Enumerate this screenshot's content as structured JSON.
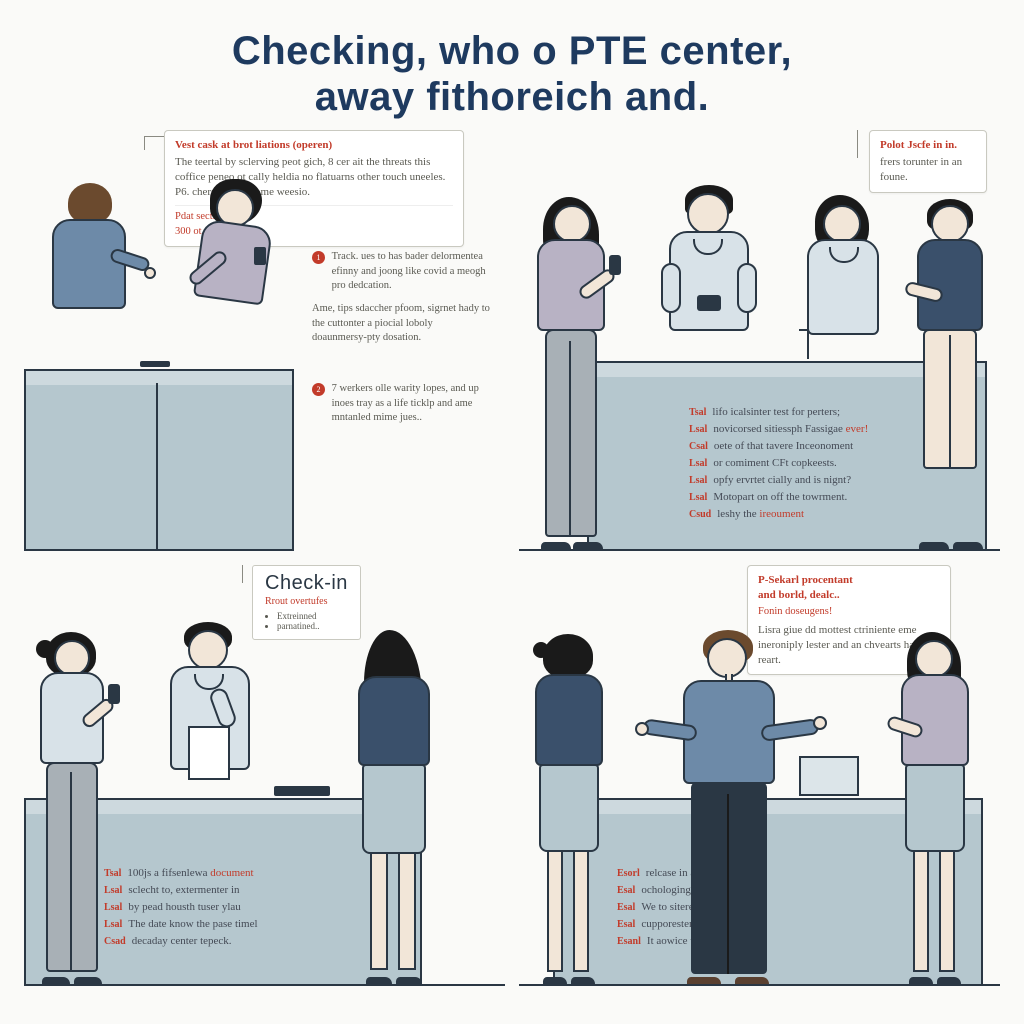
{
  "title_line1": "Checking, who o PTE center,",
  "title_line2": "away fithoreich and.",
  "colors": {
    "title": "#1e3a5f",
    "accent_red": "#c23b2a",
    "body_text": "#5a5a52",
    "desk_fill": "#b5c7ce",
    "desk_top": "#cdd9de",
    "outline": "#2a3744",
    "skin": "#f2e6d8",
    "background": "#fafaf8",
    "shirt_blue": "#6d8aa8",
    "shirt_pale": "#d8e2e8",
    "shirt_lav": "#b8b2c4",
    "shirt_navy": "#3a506b",
    "pants_grey": "#a8b0b6",
    "pants_dark": "#2a3744",
    "hair_brown": "#6b4a2e"
  },
  "panel1": {
    "callout1_head": "Vest cask at brot liations (operen)",
    "callout1_body": "The teertal by sclerving peot gich, 8 cer ait the threats this coffice peneo ot cally heldia no flatuarns other touch uneeles. P6. chers, and at come weesio.",
    "callout1_sub": "Pdat sectie in\n300 ot firrets..",
    "info1_num": "1",
    "info1": "Track. ues to has bader delormentea efinny and joong like covid a meogh pro dedcation.",
    "info1b": "Ame, tips sdaccher pfoom, sigrnet hady to the cuttonter a piocial loboly doaunmersy-pty dosation.",
    "info2_num": "2",
    "info2": "7 werkers olle warity lopes, and up inoes tray as a life ticklp and ame mntanled mime jues.."
  },
  "panel2": {
    "callout_head": "Polot Jscfe in in.",
    "callout_body": "frers torunter in an foune.",
    "list": [
      {
        "tag": "Tsal",
        "text": "lifo icalsinter test for perters;"
      },
      {
        "tag": "Lsal",
        "text": "novicorsed sitiessph Fassigae ever!",
        "hl": true
      },
      {
        "tag": "Csal",
        "text": "oete of that tavere Inceonoment"
      },
      {
        "tag": "Lsal",
        "text": "or comiment CFt copkeests."
      },
      {
        "tag": "Lsal",
        "text": "opfy ervrtet cially and is nignt?"
      },
      {
        "tag": "Lsal",
        "text": "Motopart on off the towrment."
      },
      {
        "tag": "Csud",
        "text": "leshy the ireoument",
        "hl": true
      }
    ]
  },
  "panel3": {
    "sign_main": "Check-in",
    "sign_sub": "Rrout overtufes",
    "sign_b1": "Extreinned",
    "sign_b2": "parnatined..",
    "list": [
      {
        "tag": "Tsal",
        "text": "100js a fifsenlewa document",
        "hl": "document"
      },
      {
        "tag": "Lsal",
        "text": "sclecht to, extermenter in"
      },
      {
        "tag": "Lsal",
        "text": "by pead housth tuser ylau"
      },
      {
        "tag": "Lsal",
        "text": "The date know the pase timel"
      },
      {
        "tag": "Csad",
        "text": "decaday center tepeck."
      }
    ]
  },
  "panel4": {
    "callout_head": "P-Sekarl procentant\nand borld, dealc..",
    "callout_sub": "Fonin doseugens!",
    "callout_body": "Lisra giue dd mottest ctriniente eme ineroniply lester and an chvearts has for reart.",
    "list": [
      {
        "tag": "Esorl",
        "text": "relcase in ailorered lo"
      },
      {
        "tag": "Esal",
        "text": "ochologing and deverament",
        "hl": "deverament"
      },
      {
        "tag": "Esal",
        "text": "We to siteres eroforge"
      },
      {
        "tag": "Esal",
        "text": "cupporestentl modla"
      },
      {
        "tag": "Esanl",
        "text": "It aowice time."
      }
    ]
  }
}
